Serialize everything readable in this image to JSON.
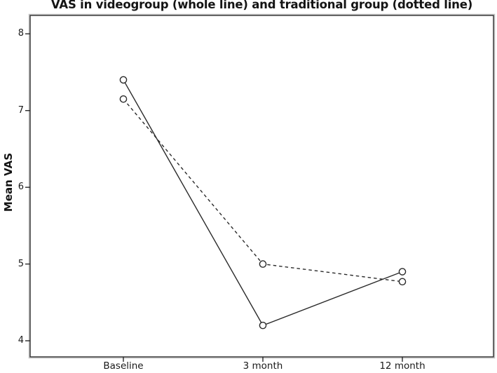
{
  "title": "VAS in videogroup (whole line) and traditional group (dotted line)",
  "chart_data": {
    "type": "line",
    "title": "VAS in videogroup (whole line) and traditional group (dotted line)",
    "categories": [
      "Baseline",
      "3 month",
      "12 month"
    ],
    "series": [
      {
        "name": "videogroup",
        "line_style": "solid",
        "values": [
          7.4,
          4.2,
          4.9
        ]
      },
      {
        "name": "traditional group",
        "line_style": "dotted",
        "values": [
          7.15,
          5.0,
          4.77
        ]
      }
    ],
    "xlabel": "",
    "ylabel": "Mean VAS",
    "yticks": [
      4,
      5,
      6,
      7,
      8
    ],
    "ylim": [
      3.79,
      8.24
    ],
    "grid": false,
    "legend": "none",
    "marker": "open-circle",
    "colors": {
      "line": "#2b2b2b",
      "frame": "#2b2b2b",
      "frame_shadow": "#c4c4c4",
      "text": "#1a1a1a",
      "background": "#ffffff"
    }
  }
}
